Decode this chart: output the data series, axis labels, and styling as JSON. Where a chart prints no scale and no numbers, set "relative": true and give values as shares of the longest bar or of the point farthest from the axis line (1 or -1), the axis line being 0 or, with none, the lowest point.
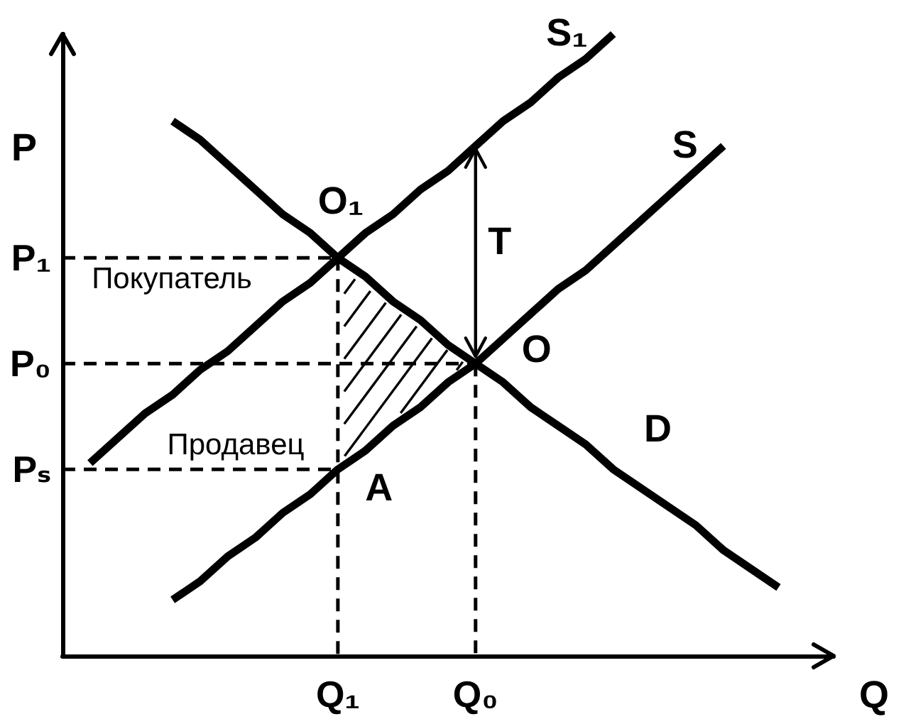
{
  "chart_data": {
    "type": "line",
    "relative": true,
    "xlabel": "Q",
    "ylabel": "P",
    "marker": "none",
    "line_style": "solid",
    "categories": [
      null,
      null,
      null,
      null,
      null,
      null,
      null,
      null,
      null,
      null,
      "Q₁",
      null,
      null,
      null,
      null,
      "Q₀",
      null,
      null,
      null,
      null,
      null,
      null,
      null,
      null,
      null,
      null,
      null,
      null,
      null
    ],
    "series": [
      {
        "name": "S₁",
        "color": "#000000",
        "values": [
          null,
          0.31,
          0.35,
          0.39,
          0.42,
          0.46,
          0.49,
          0.53,
          0.57,
          0.6,
          0.64,
          0.68,
          0.71,
          0.75,
          0.78,
          0.82,
          0.86,
          0.89,
          0.93,
          0.96,
          1,
          null,
          null,
          null,
          null,
          null,
          null,
          null,
          null
        ]
      },
      {
        "name": "S",
        "color": "#000000",
        "values": [
          null,
          null,
          null,
          null,
          0.09,
          0.12,
          0.16,
          0.19,
          0.23,
          0.26,
          0.3,
          0.33,
          0.37,
          0.4,
          0.44,
          0.47,
          0.51,
          0.55,
          0.59,
          0.62,
          0.66,
          0.7,
          0.74,
          0.78,
          0.82,
          null,
          null,
          null,
          null
        ]
      },
      {
        "name": "D",
        "color": "#000000",
        "values": [
          null,
          null,
          null,
          null,
          0.86,
          0.83,
          0.79,
          0.75,
          0.71,
          0.68,
          0.64,
          0.61,
          0.57,
          0.54,
          0.5,
          0.47,
          0.44,
          0.4,
          0.37,
          0.34,
          0.3,
          0.27,
          0.24,
          0.21,
          0.17,
          0.14,
          0.11,
          null,
          null
        ]
      },
      {
        "name": "P₁",
        "color": "#000000",
        "line_style": "dashed",
        "values": [
          0.64,
          0.64,
          0.64,
          0.64,
          0.64,
          0.64,
          0.64,
          0.64,
          0.64,
          0.64,
          0.64,
          null,
          null,
          null,
          null,
          null,
          null,
          null,
          null,
          null,
          null,
          null,
          null,
          null,
          null,
          null,
          null,
          null,
          null
        ]
      },
      {
        "name": "P₀",
        "color": "#000000",
        "line_style": "dashed",
        "values": [
          0.47,
          0.47,
          0.47,
          0.47,
          0.47,
          0.47,
          0.47,
          0.47,
          0.47,
          0.47,
          0.47,
          0.47,
          0.47,
          0.47,
          0.47,
          0.47,
          null,
          null,
          null,
          null,
          null,
          null,
          null,
          null,
          null,
          null,
          null,
          null,
          null
        ]
      },
      {
        "name": "Pₛ",
        "color": "#000000",
        "line_style": "dashed",
        "values": [
          0.3,
          0.3,
          0.3,
          0.3,
          0.3,
          0.3,
          0.3,
          0.3,
          0.3,
          0.3,
          0.3,
          null,
          null,
          null,
          null,
          null,
          null,
          null,
          null,
          null,
          null,
          null,
          null,
          null,
          null,
          null,
          null,
          null,
          null
        ]
      },
      {
        "color": "#000000",
        "line_style": "dashed",
        "x": [
          "Q₁",
          "Q₁"
        ],
        "values": [
          0.64,
          0
        ]
      },
      {
        "color": "#000000",
        "line_style": "dashed",
        "x": [
          "Q₀",
          "Q₀"
        ],
        "values": [
          0.47,
          0
        ]
      }
    ],
    "annotations": [
      {
        "text": "O₁",
        "x": "Q₁",
        "y": 0.64
      },
      {
        "text": "O",
        "x": "Q₀",
        "y": 0.47
      },
      {
        "text": "A",
        "x": "Q₁",
        "y": 0.3
      },
      {
        "text": "T",
        "x": "Q₀",
        "y": 0.82
      },
      {
        "text": "Покупатель",
        "y": 0.64
      },
      {
        "text": "Продавец",
        "y": 0.3
      }
    ]
  }
}
